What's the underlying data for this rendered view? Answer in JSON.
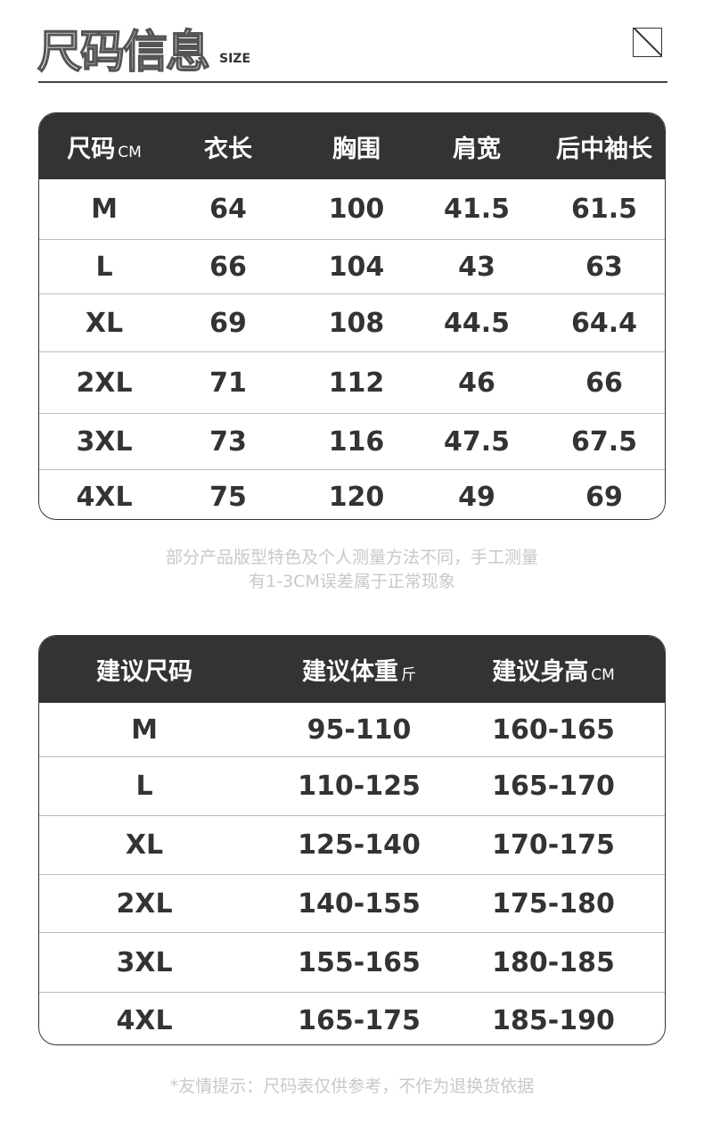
{
  "header": {
    "title": "尺码信息",
    "subtitle": "SIZE"
  },
  "size_table": {
    "headers": [
      {
        "label": "尺码",
        "unit": "CM"
      },
      {
        "label": "衣长",
        "unit": ""
      },
      {
        "label": "胸围",
        "unit": ""
      },
      {
        "label": "肩宽",
        "unit": ""
      },
      {
        "label": "后中袖长",
        "unit": ""
      }
    ],
    "rows": [
      [
        "M",
        "64",
        "100",
        "41.5",
        "61.5"
      ],
      [
        "L",
        "66",
        "104",
        "43",
        "63"
      ],
      [
        "XL",
        "69",
        "108",
        "44.5",
        "64.4"
      ],
      [
        "2XL",
        "71",
        "112",
        "46",
        "66"
      ],
      [
        "3XL",
        "73",
        "116",
        "47.5",
        "67.5"
      ],
      [
        "4XL",
        "75",
        "120",
        "49",
        "69"
      ]
    ]
  },
  "measure_note": {
    "line1": "部分产品版型特色及个人测量方法不同，手工测量",
    "line2": "有1-3CM误差属于正常现象"
  },
  "recommend_table": {
    "headers": [
      {
        "label": "建议尺码",
        "unit": ""
      },
      {
        "label": "建议体重",
        "unit": "斤"
      },
      {
        "label": "建议身高",
        "unit": "CM"
      }
    ],
    "rows": [
      [
        "M",
        "95-110",
        "160-165"
      ],
      [
        "L",
        "110-125",
        "165-170"
      ],
      [
        "XL",
        "125-140",
        "170-175"
      ],
      [
        "2XL",
        "140-155",
        "175-180"
      ],
      [
        "3XL",
        "155-165",
        "180-185"
      ],
      [
        "4XL",
        "165-175",
        "185-190"
      ]
    ]
  },
  "footer_note": "*友情提示：尺码表仅供参考，不作为退换货依据"
}
